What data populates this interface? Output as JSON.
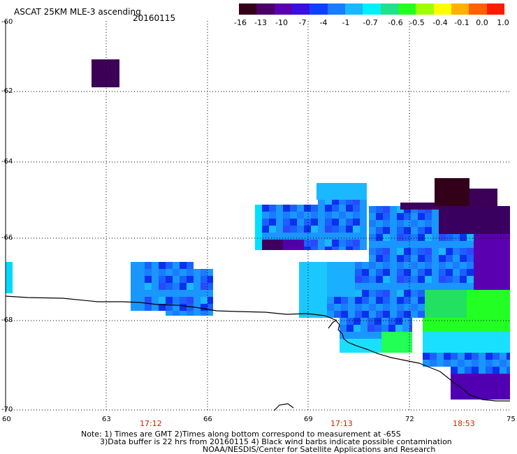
{
  "header": {
    "title": "ASCAT 25KM MLE-3 ascending",
    "date": "20160115"
  },
  "colorbar": {
    "labels": [
      "-16",
      "-13",
      "-10",
      "-7",
      "-4",
      "-1",
      "-0.7",
      "-0.6",
      "-0.5",
      "-0.4",
      "-0.1",
      "0.0",
      "1.0"
    ],
    "colors": [
      "#33001a",
      "#4a0066",
      "#5a00b0",
      "#3a10e0",
      "#1040ff",
      "#1a7cff",
      "#1ab8ff",
      "#00f0ff",
      "#22e08c",
      "#22ff22",
      "#a0ff00",
      "#ffff00",
      "#ffb000",
      "#ff6000",
      "#ff1a00"
    ]
  },
  "axes": {
    "lat_labels": [
      "-60",
      "-62",
      "-64",
      "-66",
      "-68",
      "-70"
    ],
    "lon_labels": [
      "60",
      "63",
      "66",
      "69",
      "72",
      "75"
    ],
    "times": [
      "17:12",
      "17:13",
      "18:53"
    ]
  },
  "notes": {
    "line1": "Note: 1) Times are GMT 2)Times along bottom correspond to measurement at -65S",
    "line2": "3)Data buffer is 22 hrs from 20160115 4) Black wind barbs indicate possible contamination",
    "line3": "NOAA/NESDIS/Center for Satellite Applications and Research"
  }
}
